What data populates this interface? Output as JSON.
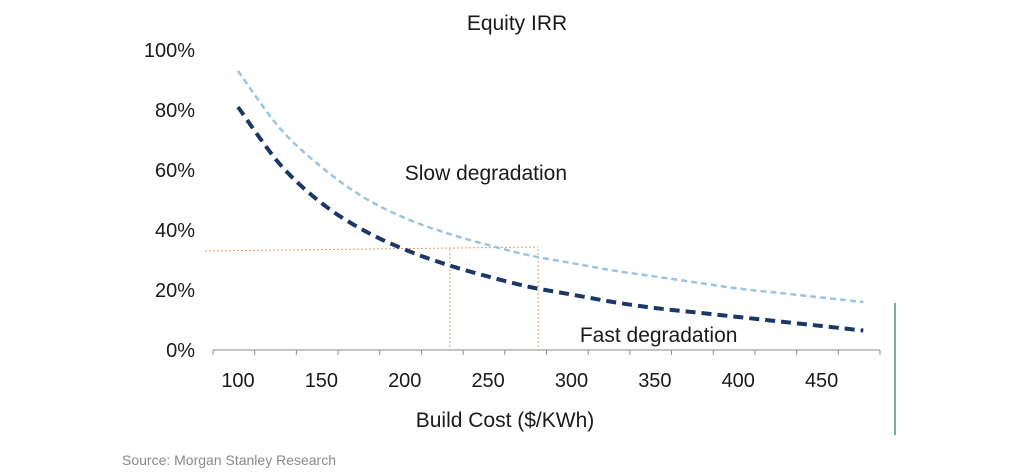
{
  "chart_data": {
    "type": "line",
    "title": "Equity IRR",
    "xlabel": "Build Cost ($/KWh)",
    "ylabel": "",
    "xlim": [
      85,
      485
    ],
    "ylim": [
      0,
      100
    ],
    "x_ticks": [
      100,
      150,
      200,
      250,
      300,
      350,
      400,
      450
    ],
    "y_ticks": [
      0,
      20,
      40,
      60,
      80,
      100
    ],
    "y_tick_labels": [
      "0%",
      "20%",
      "40%",
      "60%",
      "80%",
      "100%"
    ],
    "series": [
      {
        "name": "Slow degradation",
        "color": "#9cc3e0",
        "style": "dashed",
        "x": [
          100,
          125,
          150,
          175,
          200,
          225,
          250,
          275,
          300,
          325,
          350,
          375,
          400,
          425,
          450,
          475
        ],
        "values": [
          93,
          74,
          61,
          51,
          44,
          39,
          35,
          31.5,
          29,
          26.5,
          24.5,
          22.5,
          20.5,
          19,
          17.5,
          16
        ]
      },
      {
        "name": "Fast degradation",
        "color": "#1b3766",
        "style": "dashed",
        "x": [
          100,
          125,
          150,
          175,
          200,
          225,
          250,
          275,
          300,
          325,
          350,
          375,
          400,
          425,
          450,
          475
        ],
        "values": [
          81,
          62,
          49,
          40,
          33.5,
          28.5,
          24.5,
          21,
          18.5,
          16,
          14,
          12.5,
          11,
          9.5,
          8,
          6.5
        ]
      }
    ],
    "annotations": [
      {
        "text": "Slow degradation",
        "x": 200,
        "y": 59
      },
      {
        "text": "Fast degradation",
        "x": 305,
        "y": 5
      }
    ],
    "reference_lines": {
      "color": "#e8a060",
      "y": 33,
      "x_values": [
        227,
        280
      ]
    },
    "source": "Source: Morgan Stanley Research"
  }
}
